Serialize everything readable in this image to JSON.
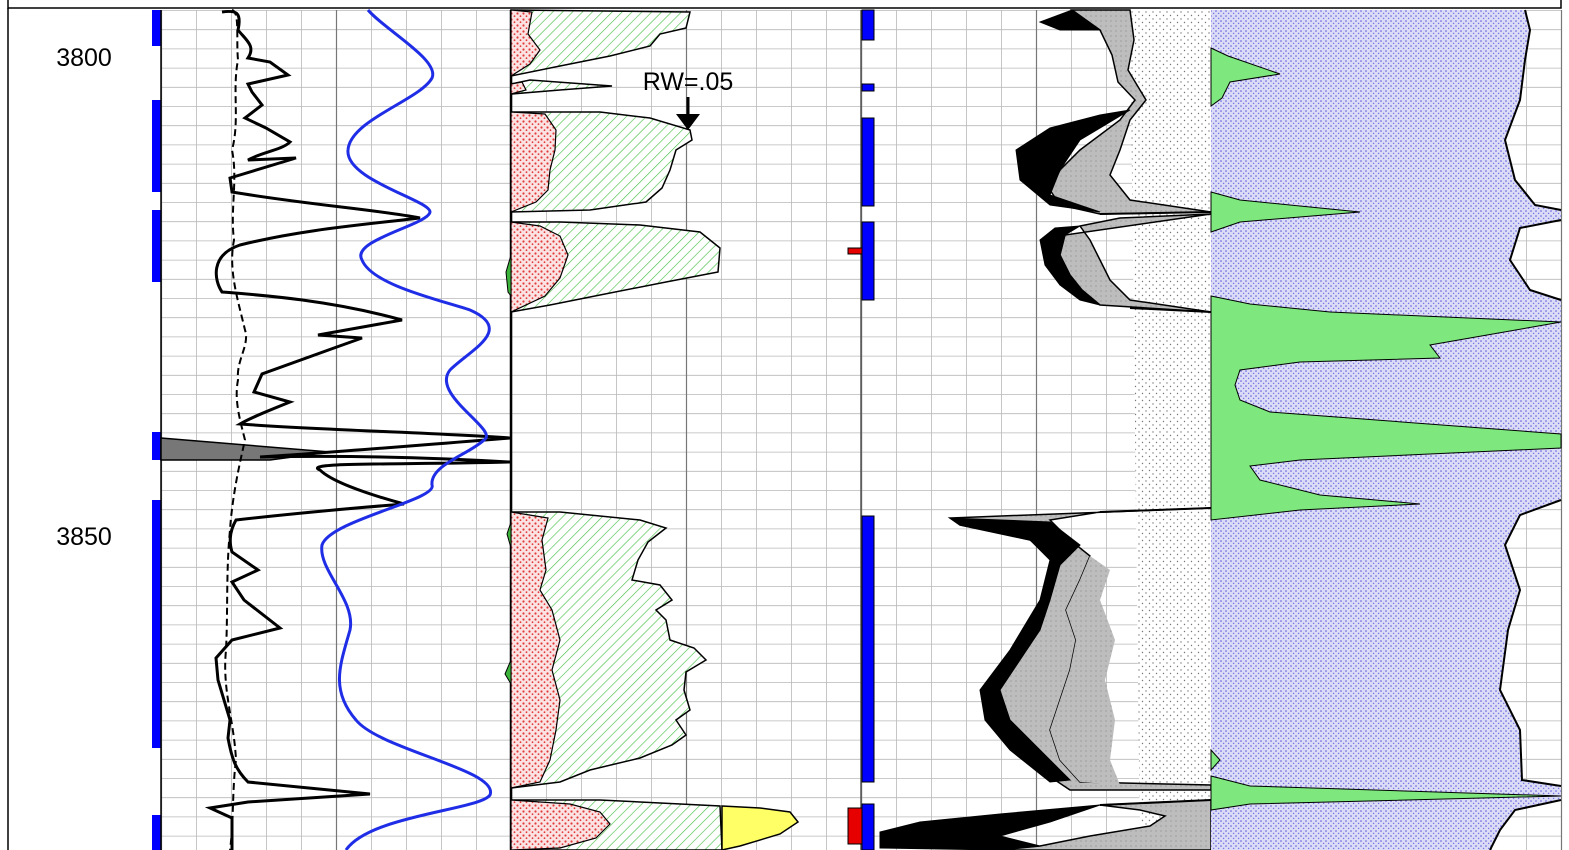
{
  "chart_data": {
    "type": "line",
    "depth_ticks": [
      {
        "depth": 3800,
        "label": "3800"
      },
      {
        "depth": 3850,
        "label": "3850"
      }
    ],
    "annotations": [
      {
        "text": "RW=.05",
        "depth": 3807
      }
    ],
    "colors": {
      "flag": "#0000ff",
      "flag_red": "#e60000",
      "curve_blue": "#1f2ee6",
      "bvw_fill": "#e84a4a",
      "porosity_hatch": "#2fb84a",
      "yellow": "#ffff66",
      "green": "#7ee87e",
      "gray": "#bdbdbd",
      "blue_dots": "#7070e0"
    },
    "note_depth_range": [
      3795,
      3883
    ]
  }
}
